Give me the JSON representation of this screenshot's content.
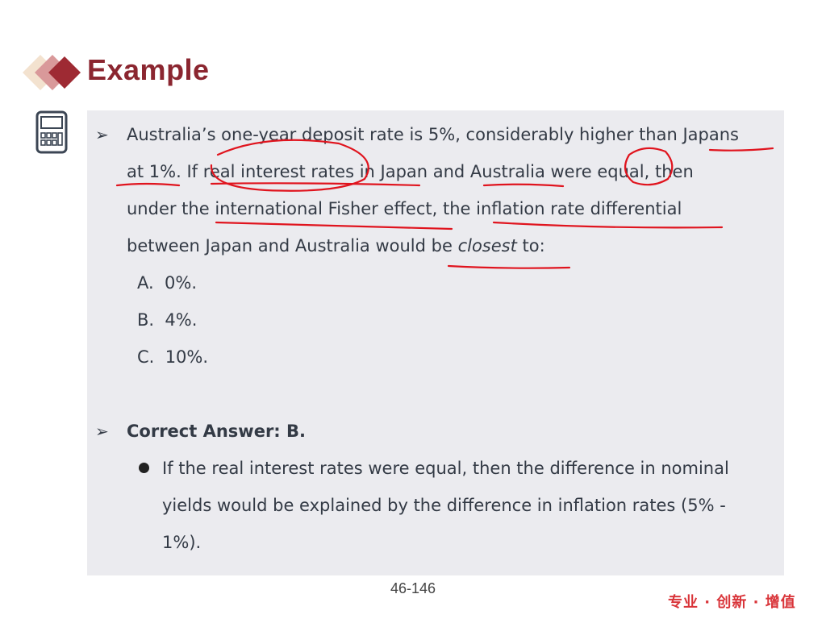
{
  "title": "Example",
  "question": {
    "lines": [
      "Australia’s one-year deposit rate is 5%, considerably higher than Japans",
      "at 1%. If real interest rates in Japan and Australia were equal, then",
      "under the international Fisher effect, the inflation rate differential"
    ],
    "last_line_prefix": "between Japan and Australia would be ",
    "last_line_italic": "closest",
    "last_line_suffix": " to:",
    "options": [
      "A.  0%.",
      "B.  4%.",
      "C.  10%."
    ]
  },
  "answer": {
    "label": "Correct Answer: B.",
    "explanation_lines": [
      "If the real interest rates were equal, then the difference in nominal",
      "yields would be explained by the difference in inflation rates (5% -",
      "1%)."
    ]
  },
  "page_number": "46-146",
  "slogan": "专业 · 创新 · 增值",
  "colors": {
    "title": "#8b2630",
    "box": "#ebebef",
    "annotation": "#e0141e",
    "slogan": "#d9353a"
  },
  "icons": [
    "diamonds-logo-icon",
    "calculator-icon",
    "arrow-bullet-icon",
    "dot-bullet-icon"
  ]
}
